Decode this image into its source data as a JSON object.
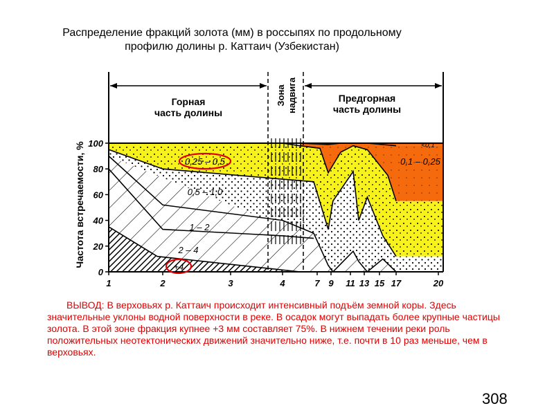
{
  "title": {
    "line1": "Распределение фракций золота (мм) в россыпях по продольному",
    "line2": "профилю долины р. Каттаич (Узбекистан)"
  },
  "conclusion": "ВЫВОД: В верховьях р. Каттаич происходит интенсивный подъём земной коры. Здесь значительные уклоны водной поверхности в реке. В осадок могут выпадать более крупные частицы золота. В этой зоне фракция купнее +3 мм составляет 75%. В нижнем течении реки роль положительных неотектонических движений значительно ниже, т.е. почти в 10 раз меньше, чем в верховьях.",
  "page_number": "308",
  "colors": {
    "yellow": "#f7f11c",
    "orange": "#f56a0c",
    "highlight": "#e00000"
  },
  "chart_data": {
    "type": "area",
    "ylabel": "Частота встречаемости, %",
    "ylim": [
      0,
      100
    ],
    "yticks": [
      "0",
      "20",
      "40",
      "60",
      "80",
      "100"
    ],
    "xticks": [
      "1",
      "2",
      "3",
      "4",
      "7",
      "9",
      "11",
      "13",
      "15",
      "17",
      "20"
    ],
    "zones": [
      {
        "line1": "Горная",
        "line2": "часть долины"
      },
      {
        "line1": "Зона",
        "line2": "надвига"
      },
      {
        "line1": "Предгорная",
        "line2": "часть долины"
      }
    ],
    "fraction_labels": [
      "0,25 – 0,5",
      "0,5 – 1,0",
      "1 – 2",
      "2 – 4",
      "+4",
      "0,1 – 0,25",
      "<0,1"
    ],
    "highlighted": [
      "0,25 – 0,5",
      "+4"
    ],
    "series": [
      {
        "name": "+4",
        "x": [
          1,
          1.9,
          4.5
        ],
        "values": [
          35,
          12,
          0
        ]
      },
      {
        "name": "2 – 4",
        "x": [
          1,
          2,
          4,
          4.9
        ],
        "values": [
          80,
          33,
          28,
          26
        ]
      },
      {
        "name": "1 – 2",
        "x": [
          1,
          2,
          4,
          4.9,
          5.8,
          6.1,
          7.2,
          7.6,
          8.2,
          9.2,
          10
        ],
        "values": [
          90,
          52,
          40,
          30,
          5,
          0,
          16,
          8,
          0,
          10,
          0
        ]
      },
      {
        "name": "0,5 – 1,0",
        "x": [
          1,
          2,
          4,
          4.9,
          5.8,
          6.1,
          7.2,
          7.6,
          8.2,
          9.2,
          10
        ],
        "values": [
          95,
          80,
          72,
          70,
          33,
          55,
          78,
          40,
          58,
          28,
          12
        ]
      },
      {
        "name": "0,25 – 0,5",
        "x": [
          1,
          4,
          4.5,
          5.2,
          5.8,
          6.5,
          7.2,
          8.2,
          9.5,
          10
        ],
        "values": [
          100,
          100,
          98,
          96,
          77,
          93,
          98,
          95,
          75,
          55
        ]
      },
      {
        "name": "0,1 – 0,25",
        "x": [
          4.5,
          5.8,
          6.5,
          7.2,
          8.2,
          10
        ],
        "values": [
          100,
          99,
          100,
          100,
          100,
          98
        ]
      }
    ]
  }
}
